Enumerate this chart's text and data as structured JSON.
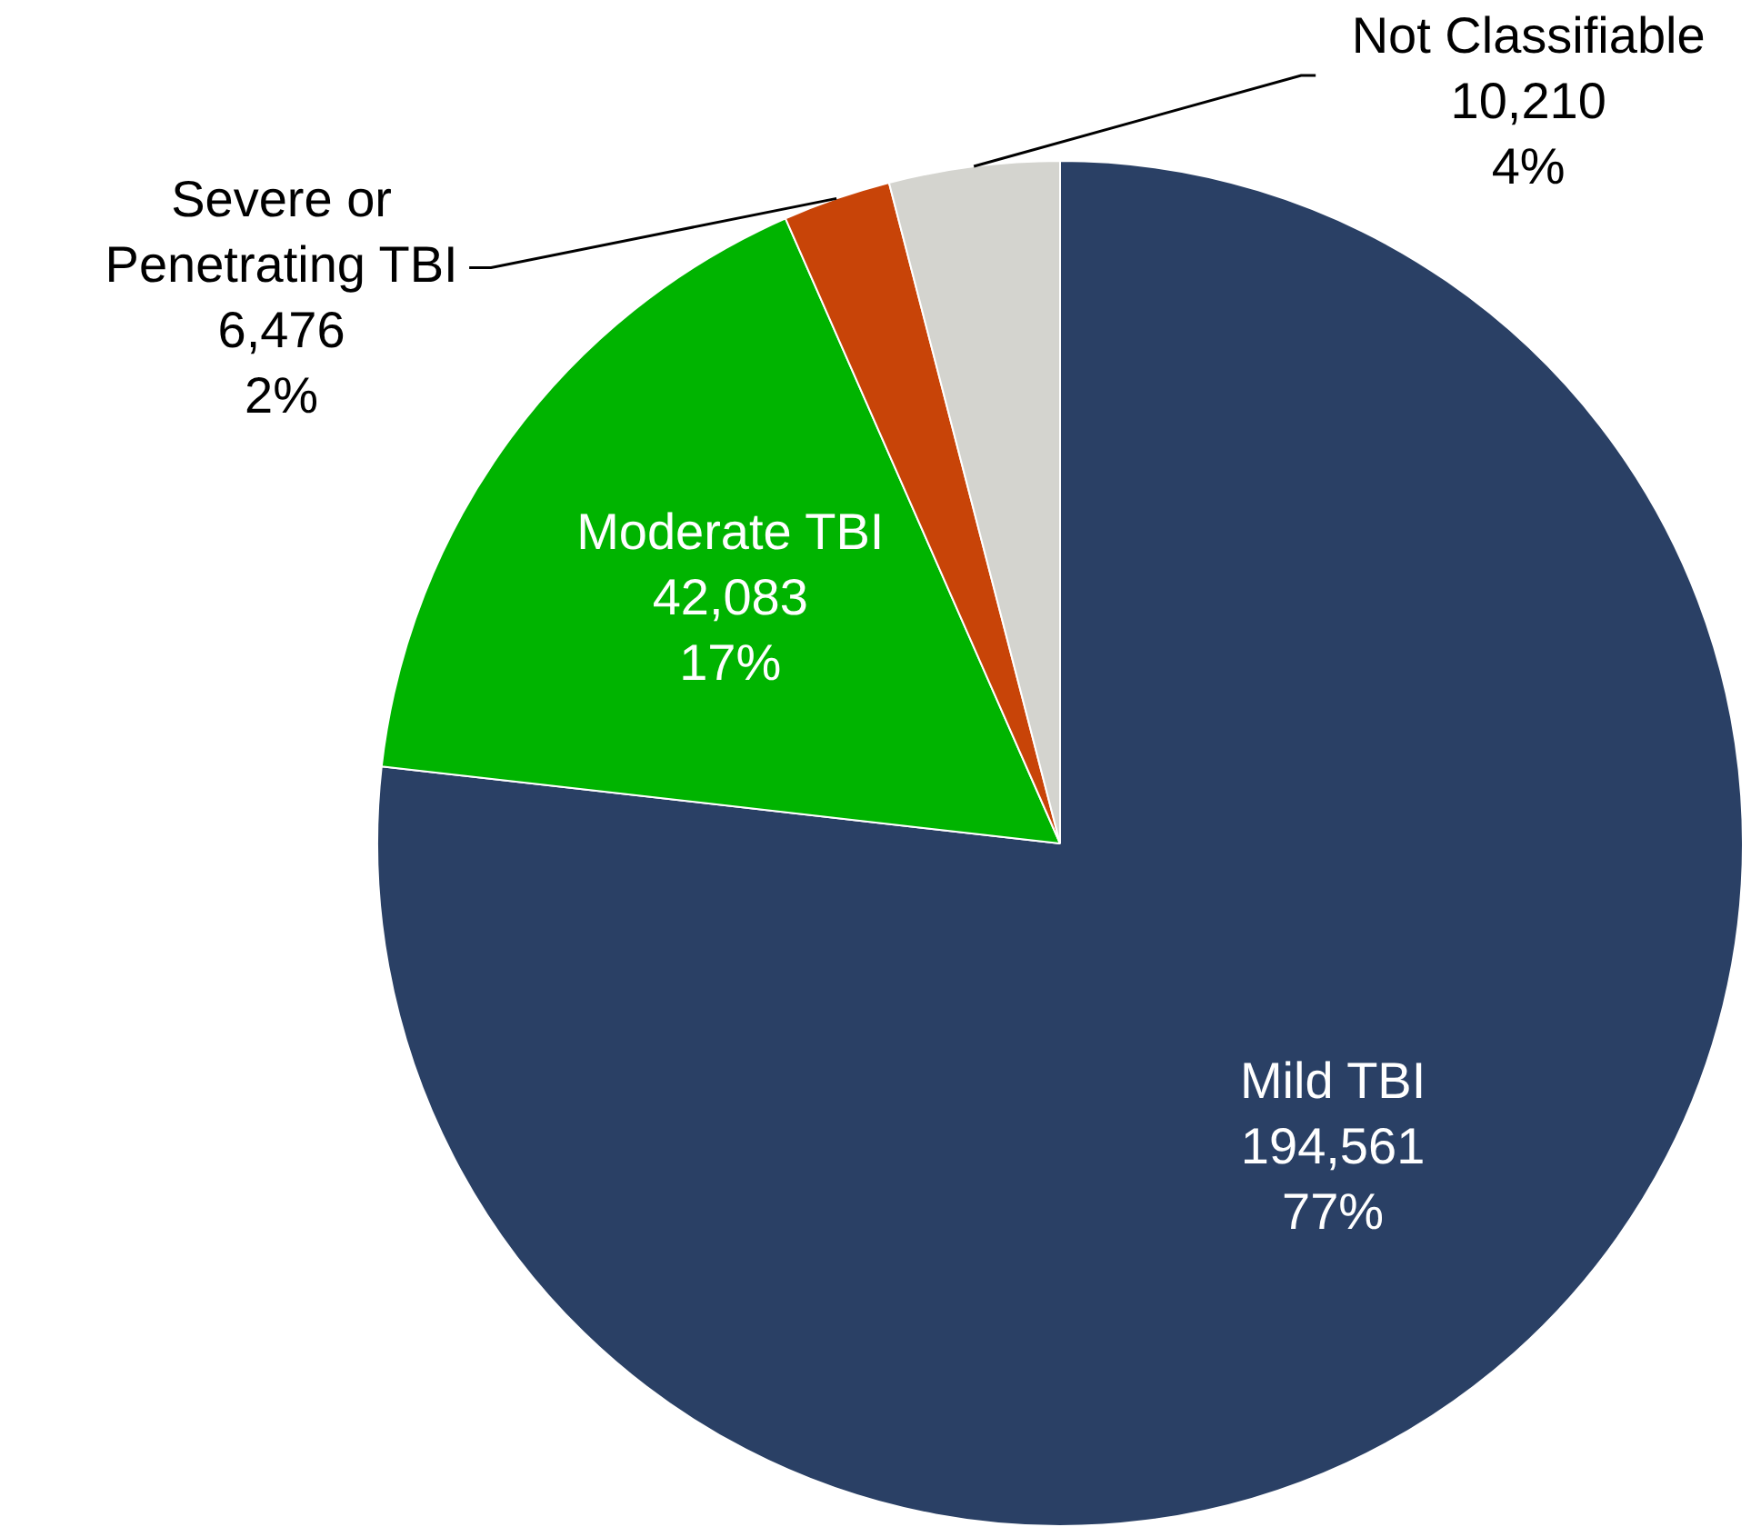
{
  "chart_data": {
    "type": "pie",
    "categories": [
      "Mild TBI",
      "Moderate TBI",
      "Severe or Penetrating TBI",
      "Not Classifiable"
    ],
    "values": [
      194561,
      42083,
      6476,
      10210
    ],
    "colors": [
      "#2a4065",
      "#00b400",
      "#c84408",
      "#d4d4cf"
    ],
    "value_labels": [
      "194,561\n77%",
      "42,083\n17%",
      "6,476\n2%",
      "10,210\n4%"
    ]
  }
}
